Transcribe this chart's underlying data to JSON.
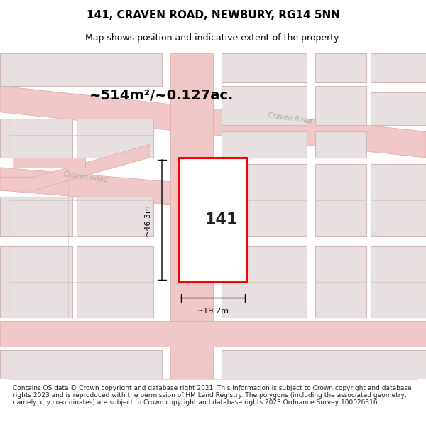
{
  "title": "141, CRAVEN ROAD, NEWBURY, RG14 5NN",
  "subtitle": "Map shows position and indicative extent of the property.",
  "area_text": "~514m²/~0.127ac.",
  "property_number": "141",
  "dim_height": "~46.3m",
  "dim_width": "~19.2m",
  "footer": "Contains OS data © Crown copyright and database right 2021. This information is subject to Crown copyright and database rights 2023 and is reproduced with the permission of HM Land Registry. The polygons (including the associated geometry, namely x, y co-ordinates) are subject to Crown copyright and database rights 2023 Ordnance Survey 100026316.",
  "bg_color": "#ffffff",
  "map_bg": "#f5f0f0",
  "road_color": "#f0c8c8",
  "road_outline": "#e8a0a0",
  "block_color": "#e8e0e0",
  "block_outline": "#d0b8b8",
  "highlight_color": "#ffffff",
  "highlight_outline": "#ff0000",
  "road_label_color": "#aaaaaa",
  "title_color": "#000000",
  "map_xlim": [
    0,
    1
  ],
  "map_ylim": [
    0,
    1
  ]
}
